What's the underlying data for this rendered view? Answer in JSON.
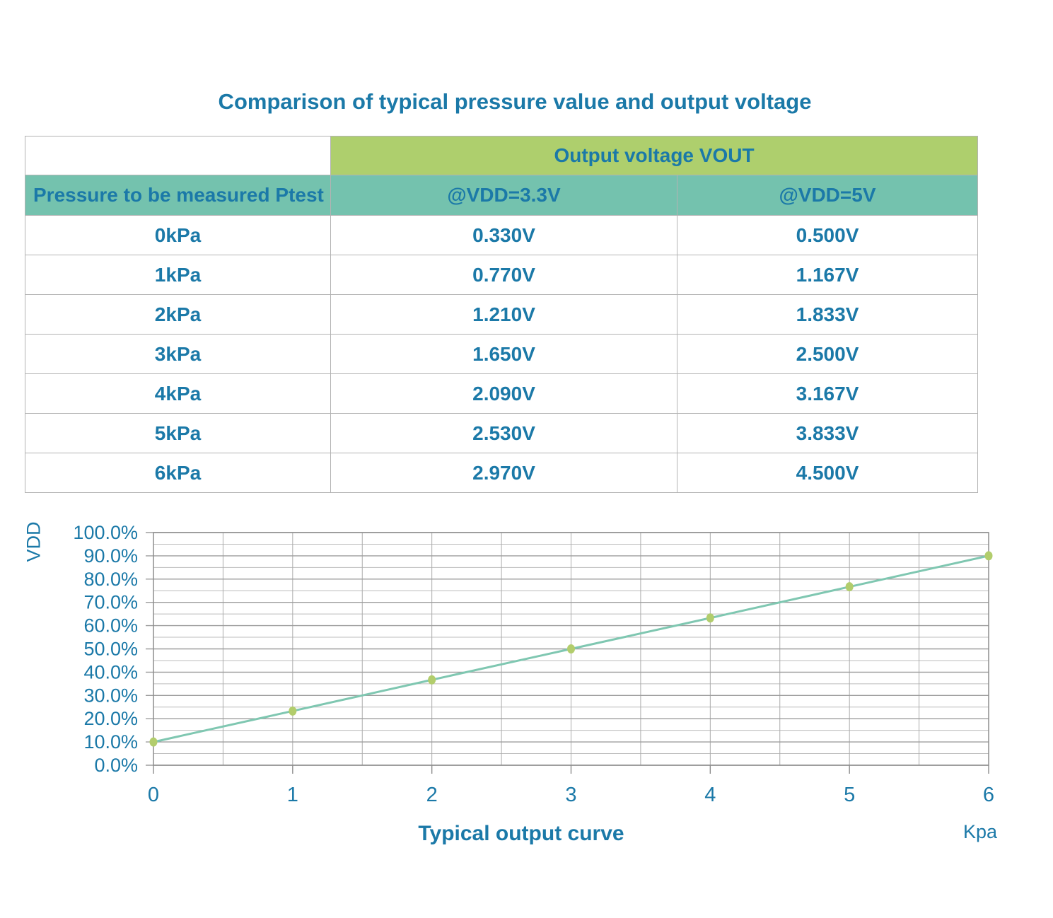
{
  "title": "Comparison of typical pressure value and output voltage",
  "table": {
    "group_header": "Output voltage VOUT",
    "row_header": "Pressure to be measured Ptest",
    "col_headers": [
      "@VDD=3.3V",
      "@VDD=5V"
    ],
    "rows": [
      {
        "pressure": "0kPa",
        "v33": "0.330V",
        "v5": "0.500V"
      },
      {
        "pressure": "1kPa",
        "v33": "0.770V",
        "v5": "1.167V"
      },
      {
        "pressure": "2kPa",
        "v33": "1.210V",
        "v5": "1.833V"
      },
      {
        "pressure": "3kPa",
        "v33": "1.650V",
        "v5": "2.500V"
      },
      {
        "pressure": "4kPa",
        "v33": "2.090V",
        "v5": "3.167V"
      },
      {
        "pressure": "5kPa",
        "v33": "2.530V",
        "v5": "3.833V"
      },
      {
        "pressure": "6kPa",
        "v33": "2.970V",
        "v5": "4.500V"
      }
    ]
  },
  "chart_data": {
    "type": "line",
    "title": "Typical output curve",
    "ylabel": "VDD",
    "x_unit_label": "Kpa",
    "x": [
      0,
      1,
      2,
      3,
      4,
      5,
      6
    ],
    "series": [
      {
        "name": "VOUT as percent of VDD",
        "values": [
          10.0,
          23.3,
          36.7,
          50.0,
          63.3,
          76.7,
          90.0
        ]
      }
    ],
    "xlim": [
      0,
      6
    ],
    "ylim": [
      0,
      100
    ],
    "y_tick_step": 10,
    "y_minor_step": 5,
    "x_tick_step": 1,
    "x_minor_step": 0.5,
    "y_tick_labels": [
      "0.0%",
      "10.0%",
      "20.0%",
      "30.0%",
      "40.0%",
      "50.0%",
      "60.0%",
      "70.0%",
      "80.0%",
      "90.0%",
      "100.0%"
    ],
    "x_tick_labels": [
      "0",
      "1",
      "2",
      "3",
      "4",
      "5",
      "6"
    ],
    "grid": "both",
    "legend": "none",
    "line_color": "#7fc7b1",
    "marker_color": "#b2cd6c"
  },
  "colors": {
    "accent_blue": "#1b79a8",
    "header_green": "#aecf6d",
    "header_teal": "#74c2ae",
    "table_border": "#b3b3b3",
    "grid_minor": "#bcbcbc",
    "grid_major": "#9d9d9d",
    "grid_vertical": "#ababab",
    "plot_border": "#8d8d8d"
  }
}
